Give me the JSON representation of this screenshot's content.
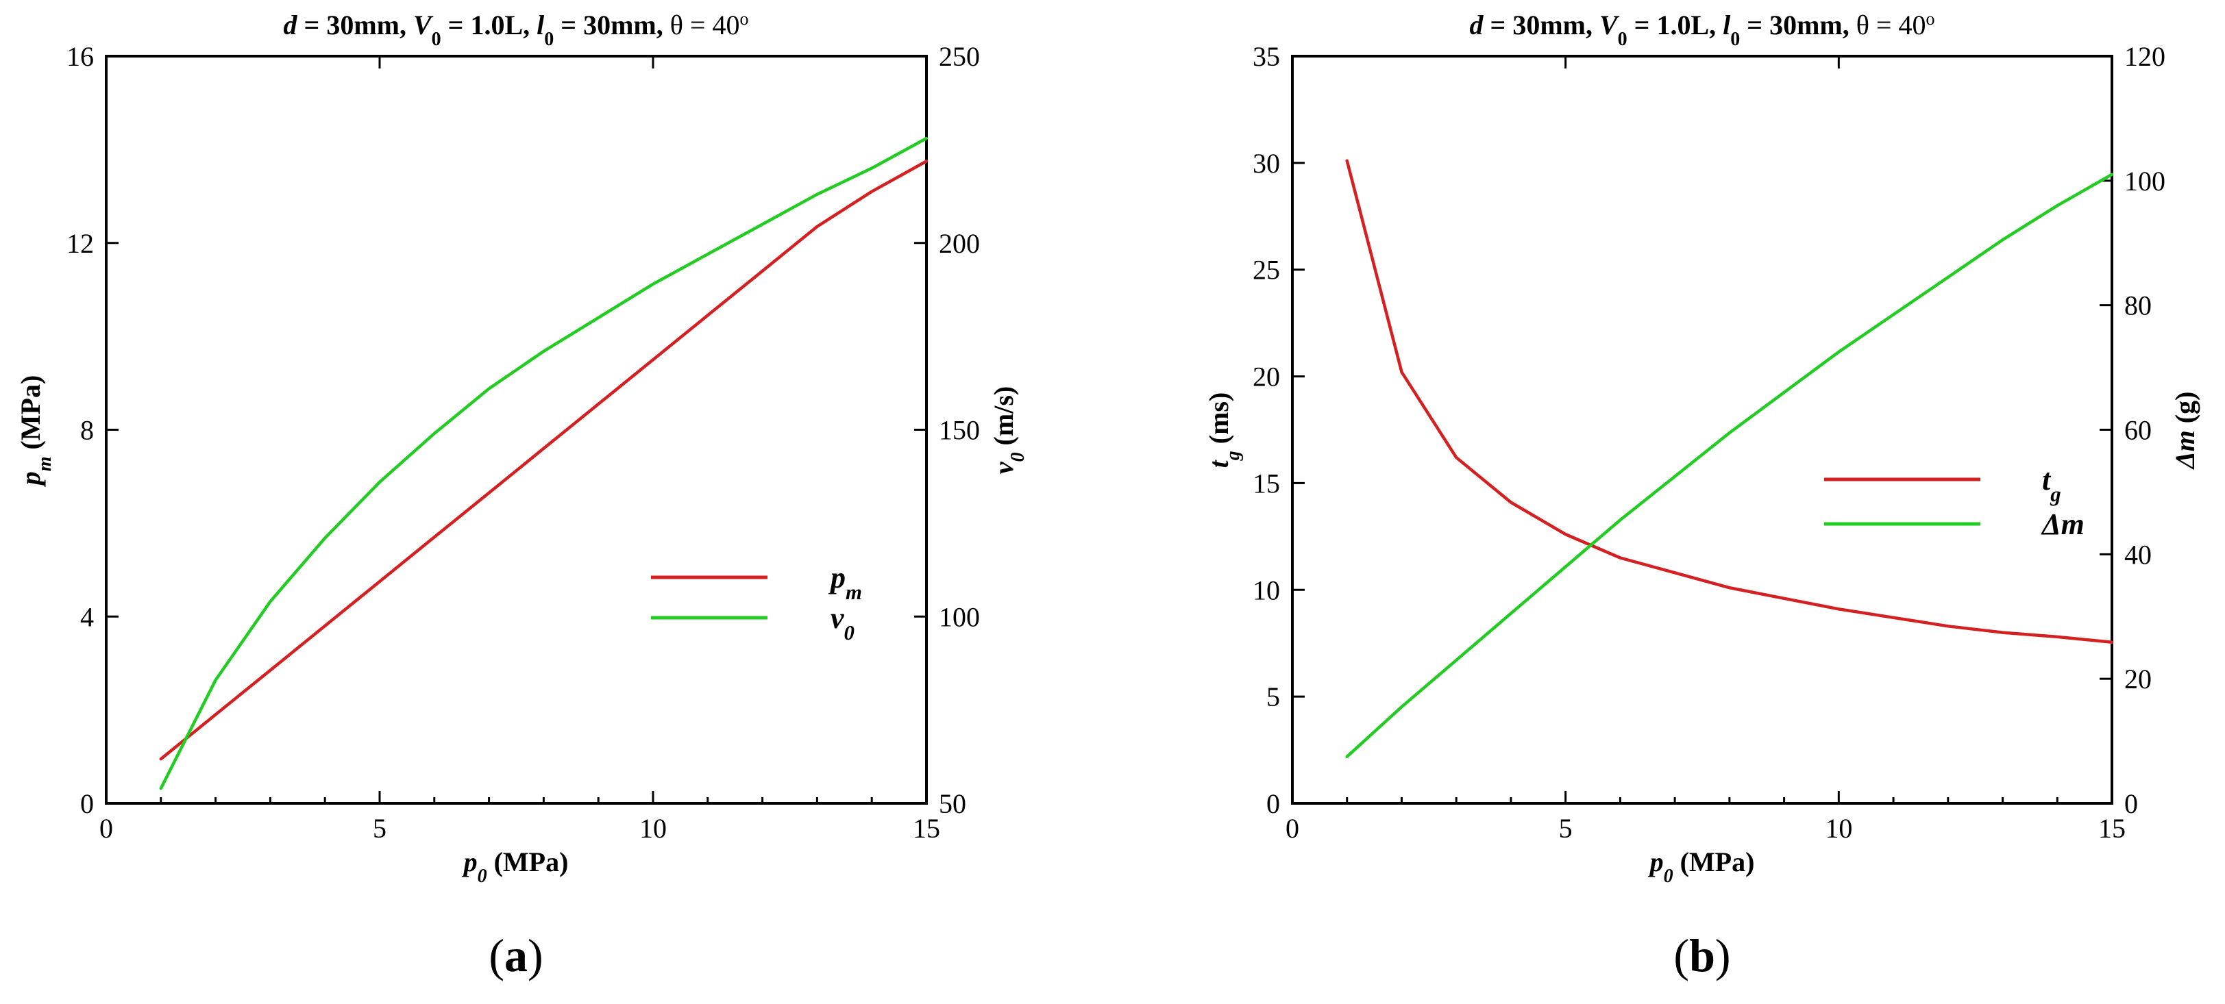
{
  "chart_data": [
    {
      "type": "line",
      "panel_label": "(a)",
      "title": "d = 30mm, V0 = 1.0L, l0 = 30mm, θ = 40o",
      "title_parts": {
        "d": "d",
        "V0": "V",
        "V0_sub": "0",
        "l0": "l",
        "l0_sub": "0",
        "theta": "θ",
        "deg": "o",
        "eq1": " = 30mm, ",
        "eq2": " = 1.0L, ",
        "eq3": " = 30mm, ",
        "eq4": " = 40"
      },
      "xlabel": "p0 (MPa)",
      "xlabel_parts": {
        "sym": "p",
        "sub": "0",
        "unit": " (MPa)"
      },
      "ylabel": "pm (MPa)",
      "ylabel_parts": {
        "sym": "p",
        "sub": "m",
        "unit": " (MPa)"
      },
      "y2label": "v0 (m/s)",
      "y2label_parts": {
        "sym": "v",
        "sub": "0",
        "unit": " (m/s)"
      },
      "xlim": [
        0,
        15
      ],
      "ylim": [
        0,
        16
      ],
      "y2lim": [
        50,
        250
      ],
      "xticks": [
        0,
        5,
        10,
        15
      ],
      "yticks": [
        0,
        4,
        8,
        12,
        16
      ],
      "y2ticks": [
        50,
        100,
        150,
        200,
        250
      ],
      "series": [
        {
          "name": "pm",
          "sym": "p",
          "sub": "m",
          "axis": "left",
          "color": "#d42020",
          "x": [
            1,
            2,
            3,
            4,
            5,
            6,
            7,
            8,
            9,
            10,
            11,
            12,
            13,
            14,
            15
          ],
          "y": [
            0.95,
            1.9,
            2.85,
            3.8,
            4.75,
            5.7,
            6.65,
            7.6,
            8.55,
            9.5,
            10.45,
            11.4,
            12.35,
            13.1,
            13.75
          ]
        },
        {
          "name": "v0",
          "sym": "v",
          "sub": "0",
          "axis": "right",
          "color": "#22cc22",
          "x": [
            1,
            2,
            3,
            4,
            5,
            6,
            7,
            8,
            9,
            10,
            11,
            12,
            13,
            14,
            15
          ],
          "y": [
            54,
            83,
            104,
            121,
            136,
            149,
            161,
            171,
            180,
            189,
            197,
            205,
            213,
            220,
            228
          ]
        }
      ]
    },
    {
      "type": "line",
      "panel_label": "(b)",
      "title": "d = 30mm, V0 = 1.0L, l0 = 30mm, θ = 40o",
      "title_parts": {
        "d": "d",
        "V0": "V",
        "V0_sub": "0",
        "l0": "l",
        "l0_sub": "0",
        "theta": "θ",
        "deg": "o",
        "eq1": " = 30mm, ",
        "eq2": " = 1.0L, ",
        "eq3": " = 30mm, ",
        "eq4": " = 40"
      },
      "xlabel": "p0 (MPa)",
      "xlabel_parts": {
        "sym": "p",
        "sub": "0",
        "unit": " (MPa)"
      },
      "ylabel": "tg (ms)",
      "ylabel_parts": {
        "sym": "t",
        "sub": "g",
        "unit": " (ms)"
      },
      "y2label": "Δm (g)",
      "y2label_parts": {
        "sym": "Δm",
        "sub": "",
        "unit": " (g)"
      },
      "xlim": [
        0,
        15
      ],
      "ylim": [
        0,
        35
      ],
      "y2lim": [
        0,
        120
      ],
      "xticks": [
        0,
        5,
        10,
        15
      ],
      "yticks": [
        0,
        5,
        10,
        15,
        20,
        25,
        30,
        35
      ],
      "y2ticks": [
        0,
        20,
        40,
        60,
        80,
        100,
        120
      ],
      "series": [
        {
          "name": "tg",
          "sym": "t",
          "sub": "g",
          "axis": "left",
          "color": "#d42020",
          "x": [
            1,
            2,
            3,
            4,
            5,
            6,
            7,
            8,
            9,
            10,
            11,
            12,
            13,
            14,
            15
          ],
          "y": [
            30.1,
            20.2,
            16.2,
            14.1,
            12.6,
            11.5,
            10.8,
            10.1,
            9.6,
            9.1,
            8.7,
            8.3,
            8.0,
            7.8,
            7.55
          ]
        },
        {
          "name": "Δm",
          "sym": "Δm",
          "sub": "",
          "axis": "right",
          "color": "#22cc22",
          "x": [
            1,
            2,
            3,
            4,
            5,
            6,
            7,
            8,
            9,
            10,
            11,
            12,
            13,
            14,
            15
          ],
          "y": [
            7.5,
            15.5,
            23,
            30.5,
            38,
            45.5,
            52.5,
            59.5,
            66,
            72.5,
            78.5,
            84.5,
            90.5,
            96,
            101
          ]
        }
      ]
    }
  ]
}
